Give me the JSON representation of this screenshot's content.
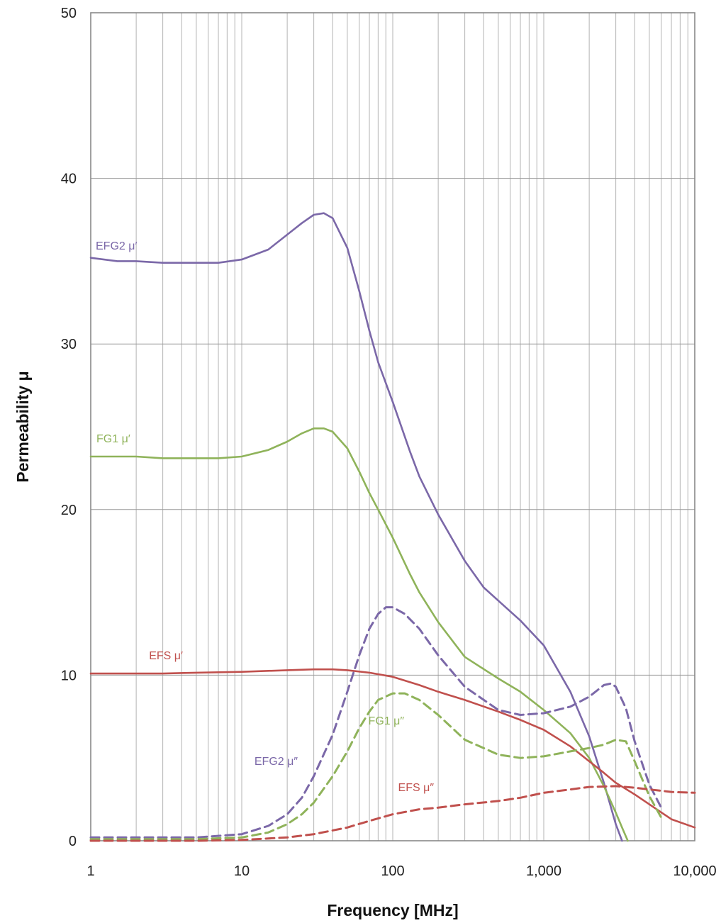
{
  "chart_data": {
    "type": "line",
    "xlabel": "Frequency [MHz]",
    "ylabel": "Permeability μ",
    "x_scale": "log",
    "xlim": [
      1,
      10000
    ],
    "ylim": [
      0,
      50
    ],
    "grid": true,
    "x_tick_labels": [
      "1",
      "10",
      "100",
      "1,000",
      "10,000"
    ],
    "y_tick_labels": [
      "0",
      "10",
      "20",
      "30",
      "40",
      "50"
    ],
    "colors": {
      "EFG2": "#7b68a8",
      "FG1": "#8fb35a",
      "EFS": "#c0504d"
    },
    "series": [
      {
        "name": "EFG2 μ′",
        "label": "EFG2 μ′",
        "color": "#7b68a8",
        "dash": false,
        "x": [
          1,
          1.5,
          2,
          3,
          5,
          7,
          10,
          15,
          20,
          25,
          30,
          35,
          40,
          50,
          60,
          70,
          80,
          100,
          130,
          150,
          200,
          300,
          400,
          500,
          700,
          1000,
          1500,
          2000,
          2500,
          3000,
          3300
        ],
        "y": [
          35.2,
          35.0,
          35.0,
          34.9,
          34.9,
          34.9,
          35.1,
          35.7,
          36.6,
          37.3,
          37.8,
          37.9,
          37.6,
          35.8,
          33.2,
          30.8,
          28.9,
          26.5,
          23.5,
          22.0,
          19.7,
          16.9,
          15.3,
          14.5,
          13.3,
          11.8,
          9.0,
          6.3,
          3.5,
          1.0,
          0.0
        ]
      },
      {
        "name": "FG1 μ′",
        "label": "FG1 μ′",
        "color": "#8fb35a",
        "dash": false,
        "x": [
          1,
          1.5,
          2,
          3,
          5,
          7,
          10,
          15,
          20,
          25,
          30,
          35,
          40,
          50,
          60,
          70,
          80,
          100,
          130,
          150,
          200,
          300,
          500,
          700,
          1000,
          1500,
          2000,
          2500,
          3000,
          3300,
          3600
        ],
        "y": [
          23.2,
          23.2,
          23.2,
          23.1,
          23.1,
          23.1,
          23.2,
          23.6,
          24.1,
          24.6,
          24.9,
          24.9,
          24.7,
          23.7,
          22.3,
          21.0,
          20.0,
          18.3,
          16.1,
          15.0,
          13.2,
          11.1,
          9.8,
          9.0,
          7.9,
          6.5,
          5.0,
          3.3,
          1.7,
          0.8,
          0.0
        ]
      },
      {
        "name": "EFS μ′",
        "label": "EFS μ′",
        "color": "#c0504d",
        "dash": false,
        "x": [
          1,
          2,
          3,
          5,
          10,
          20,
          30,
          40,
          50,
          70,
          100,
          150,
          200,
          300,
          500,
          700,
          1000,
          1500,
          2000,
          2500,
          3000,
          4000,
          5000,
          7000,
          10000
        ],
        "y": [
          10.1,
          10.1,
          10.1,
          10.15,
          10.2,
          10.3,
          10.35,
          10.35,
          10.3,
          10.15,
          9.9,
          9.4,
          9.0,
          8.5,
          7.8,
          7.3,
          6.7,
          5.7,
          4.8,
          4.1,
          3.5,
          2.8,
          2.2,
          1.3,
          0.8
        ]
      },
      {
        "name": "EFG2 μ″",
        "label": "EFG2 μ″",
        "color": "#7b68a8",
        "dash": true,
        "x": [
          1,
          2,
          5,
          10,
          15,
          20,
          25,
          30,
          40,
          50,
          60,
          70,
          80,
          90,
          100,
          120,
          150,
          200,
          300,
          500,
          700,
          1000,
          1500,
          2000,
          2500,
          2800,
          3000,
          3500,
          4000,
          5000,
          6000
        ],
        "y": [
          0.2,
          0.2,
          0.2,
          0.4,
          0.9,
          1.6,
          2.6,
          3.9,
          6.4,
          9.0,
          11.2,
          12.8,
          13.7,
          14.1,
          14.1,
          13.7,
          12.8,
          11.2,
          9.3,
          7.9,
          7.6,
          7.7,
          8.1,
          8.7,
          9.4,
          9.5,
          9.3,
          8.0,
          6.0,
          3.4,
          2.0
        ]
      },
      {
        "name": "FG1 μ″",
        "label": "FG1 μ″",
        "color": "#8fb35a",
        "dash": true,
        "x": [
          1,
          2,
          5,
          10,
          15,
          20,
          25,
          30,
          40,
          50,
          60,
          70,
          80,
          100,
          120,
          150,
          200,
          300,
          500,
          700,
          1000,
          1500,
          2000,
          2500,
          3000,
          3500,
          4000,
          5000,
          6000
        ],
        "y": [
          0.1,
          0.1,
          0.1,
          0.2,
          0.5,
          1.0,
          1.6,
          2.3,
          3.9,
          5.4,
          6.8,
          7.8,
          8.5,
          8.9,
          8.9,
          8.5,
          7.6,
          6.1,
          5.2,
          5.0,
          5.1,
          5.4,
          5.6,
          5.8,
          6.1,
          6.0,
          4.8,
          2.7,
          1.4
        ]
      },
      {
        "name": "EFS μ″",
        "label": "EFS μ″",
        "color": "#c0504d",
        "dash": true,
        "x": [
          1,
          5,
          10,
          20,
          30,
          50,
          70,
          100,
          150,
          200,
          300,
          500,
          700,
          1000,
          1500,
          2000,
          3000,
          4000,
          5000,
          7000,
          10000
        ],
        "y": [
          0.0,
          0.0,
          0.05,
          0.2,
          0.4,
          0.8,
          1.2,
          1.6,
          1.9,
          2.0,
          2.2,
          2.4,
          2.6,
          2.9,
          3.1,
          3.25,
          3.3,
          3.2,
          3.1,
          2.95,
          2.9
        ]
      }
    ]
  }
}
